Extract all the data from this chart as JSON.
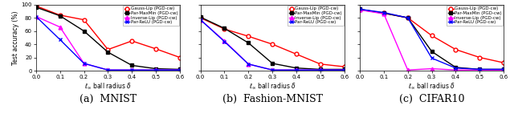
{
  "x": [
    0,
    0.1,
    0.2,
    0.3,
    0.4,
    0.5,
    0.6
  ],
  "subplots": [
    {
      "title": "(a)  MNIST",
      "series": [
        {
          "label": "Gauss-Lip (PGD-cw)",
          "color": "red",
          "marker": "o",
          "markerfacecolor": "white",
          "linewidth": 1.0,
          "markersize": 3.5,
          "y": [
            98,
            84,
            77,
            32,
            45,
            33,
            20
          ]
        },
        {
          "label": "Par-MaxMin (PGD-cw)",
          "color": "black",
          "marker": "s",
          "markerfacecolor": "black",
          "linewidth": 1.0,
          "markersize": 3.5,
          "y": [
            96,
            83,
            60,
            28,
            8,
            3,
            2
          ]
        },
        {
          "label": "Inverse-Lip (PGD-cw)",
          "color": "magenta",
          "marker": "^",
          "markerfacecolor": "magenta",
          "linewidth": 1.0,
          "markersize": 3.5,
          "y": [
            82,
            66,
            11,
            1,
            1,
            1,
            1
          ]
        },
        {
          "label": "Par-ReLU (PGD-cw)",
          "color": "blue",
          "marker": "x",
          "markerfacecolor": "blue",
          "linewidth": 1.0,
          "markersize": 3.5,
          "y": [
            82,
            47,
            11,
            1,
            1,
            1,
            1
          ]
        }
      ]
    },
    {
      "title": "(b)  Fashion-MNIST",
      "series": [
        {
          "label": "Gauss-Lip (PGD-cw)",
          "color": "red",
          "marker": "o",
          "markerfacecolor": "white",
          "linewidth": 1.0,
          "markersize": 3.5,
          "y": [
            80,
            63,
            52,
            40,
            25,
            10,
            6
          ]
        },
        {
          "label": "Par-MaxMin (PGD-cw)",
          "color": "black",
          "marker": "s",
          "markerfacecolor": "black",
          "linewidth": 1.0,
          "markersize": 3.5,
          "y": [
            81,
            64,
            42,
            11,
            4,
            2,
            2
          ]
        },
        {
          "label": "Inverse-Lip (PGD-cw)",
          "color": "magenta",
          "marker": "^",
          "markerfacecolor": "magenta",
          "linewidth": 1.0,
          "markersize": 3.5,
          "y": [
            77,
            45,
            10,
            1,
            1,
            1,
            1
          ]
        },
        {
          "label": "Par-ReLU (PGD-cw)",
          "color": "blue",
          "marker": "x",
          "markerfacecolor": "blue",
          "linewidth": 1.0,
          "markersize": 3.5,
          "y": [
            77,
            44,
            10,
            1,
            1,
            1,
            1
          ]
        }
      ]
    },
    {
      "title": "(c)  CIFAR10",
      "series": [
        {
          "label": "Gauss-Lip (PGD-cw)",
          "color": "red",
          "marker": "o",
          "markerfacecolor": "white",
          "linewidth": 1.0,
          "markersize": 3.5,
          "y": [
            92,
            87,
            80,
            53,
            32,
            20,
            12
          ]
        },
        {
          "label": "Par-MaxMin (PGD-cw)",
          "color": "black",
          "marker": "s",
          "markerfacecolor": "black",
          "linewidth": 1.0,
          "markersize": 3.5,
          "y": [
            93,
            87,
            80,
            29,
            5,
            2,
            2
          ]
        },
        {
          "label": "Inverse-Lip (PGD-cw)",
          "color": "magenta",
          "marker": "^",
          "markerfacecolor": "magenta",
          "linewidth": 1.0,
          "markersize": 3.5,
          "y": [
            92,
            86,
            1,
            3,
            1,
            1,
            1
          ]
        },
        {
          "label": "Par-ReLU (PGD-cw)",
          "color": "blue",
          "marker": "x",
          "markerfacecolor": "blue",
          "linewidth": 1.0,
          "markersize": 3.5,
          "y": [
            93,
            88,
            80,
            19,
            4,
            2,
            2
          ]
        }
      ]
    }
  ],
  "xlabel": "$\\ell_\\infty$ ball radius $\\delta$",
  "ylabel": "Test accuracy (%)",
  "xlim": [
    0,
    0.6
  ],
  "ylim": [
    0,
    100
  ],
  "yticks": [
    0,
    20,
    40,
    60,
    80,
    100
  ],
  "xticks": [
    0,
    0.1,
    0.2,
    0.3,
    0.4,
    0.5,
    0.6
  ],
  "legend_fontsize": 4.0,
  "axis_fontsize": 5.5,
  "title_fontsize": 9,
  "tick_fontsize": 5.0
}
